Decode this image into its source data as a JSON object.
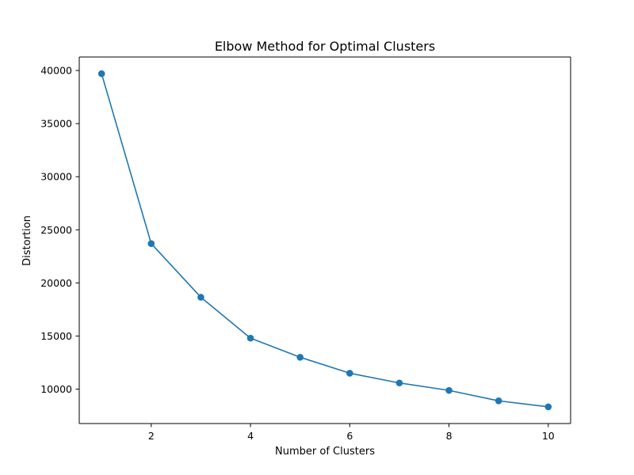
{
  "chart_data": {
    "type": "line",
    "title": "Elbow Method for Optimal Clusters",
    "xlabel": "Number of Clusters",
    "ylabel": "Distortion",
    "x": [
      1,
      2,
      3,
      4,
      5,
      6,
      7,
      8,
      9,
      10
    ],
    "series": [
      {
        "values": [
          39700,
          23700,
          18650,
          14800,
          13000,
          11500,
          10580,
          9880,
          8900,
          8330
        ],
        "color": "#1f77b4",
        "marker": "circle"
      }
    ],
    "xlim": [
      0.55,
      10.45
    ],
    "ylim": [
      6760,
      41270
    ],
    "x_ticks": [
      2,
      4,
      6,
      8,
      10
    ],
    "x_tick_labels": [
      "2",
      "4",
      "6",
      "8",
      "10"
    ],
    "y_ticks": [
      10000,
      15000,
      20000,
      25000,
      30000,
      35000,
      40000
    ],
    "y_tick_labels": [
      "10000",
      "15000",
      "20000",
      "25000",
      "30000",
      "35000",
      "40000"
    ],
    "grid": false,
    "legend": false
  }
}
